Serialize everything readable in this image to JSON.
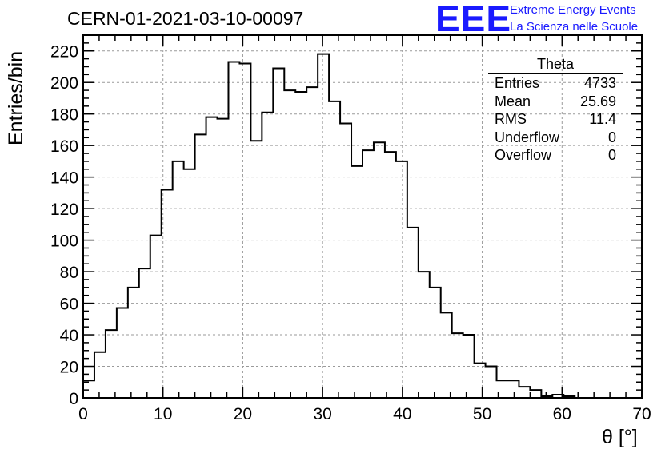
{
  "header": {
    "run_title": "CERN-01-2021-03-10-00097",
    "logo_text": "EEE",
    "logo_line1": "Extreme Energy Events",
    "logo_line2": "La Scienza nelle Scuole"
  },
  "stats_box": {
    "name": "Theta",
    "rows": [
      {
        "label": "Entries",
        "value": "4733"
      },
      {
        "label": "Mean",
        "value": "25.69"
      },
      {
        "label": "RMS",
        "value": "11.4"
      },
      {
        "label": "Underflow",
        "value": "0"
      },
      {
        "label": "Overflow",
        "value": "0"
      }
    ]
  },
  "chart_data": {
    "type": "histogram",
    "title": "CERN-01-2021-03-10-00097",
    "xlabel": "θ [°]",
    "ylabel": "Entries/bin",
    "xlim": [
      0,
      70
    ],
    "ylim": [
      0,
      230
    ],
    "bin_width": 1.4,
    "x_ticks": [
      0,
      10,
      20,
      30,
      40,
      50,
      60,
      70
    ],
    "y_ticks": [
      0,
      20,
      40,
      60,
      80,
      100,
      120,
      140,
      160,
      180,
      200,
      220
    ],
    "grid": true,
    "values": [
      11,
      29,
      43,
      57,
      70,
      82,
      103,
      132,
      150,
      145,
      167,
      178,
      177,
      213,
      212,
      163,
      181,
      209,
      195,
      194,
      197,
      218,
      188,
      174,
      147,
      157,
      162,
      156,
      150,
      108,
      80,
      70,
      54,
      41,
      40,
      22,
      20,
      11,
      11,
      7,
      5,
      1,
      2,
      1,
      0,
      0,
      0,
      0,
      0,
      0
    ]
  }
}
